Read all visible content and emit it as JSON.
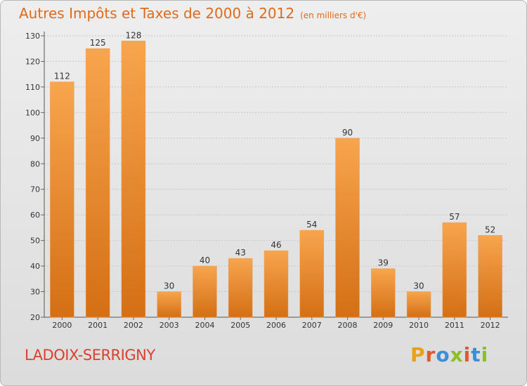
{
  "header": {
    "title": "Autres Impôts et Taxes de 2000 à 2012",
    "subtitle": "(en milliers d'€)"
  },
  "footer": {
    "city": "LADOIX-SERRIGNY",
    "logo_letters": [
      "P",
      "r",
      "o",
      "x",
      "i",
      "t",
      "i"
    ],
    "logo_colors": [
      "#e8a21a",
      "#e05a2a",
      "#3a8fd8",
      "#8cbf26",
      "#e05a2a",
      "#3a8fd8",
      "#8cbf26"
    ]
  },
  "colors": {
    "bar_top": "#f7a54e",
    "bar_bottom": "#d46f14",
    "title": "#e06a1b",
    "city": "#d9412e"
  },
  "chart_data": {
    "type": "bar",
    "title": "Autres Impôts et Taxes de 2000 à 2012",
    "subtitle": "(en milliers d'€)",
    "categories": [
      "2000",
      "2001",
      "2002",
      "2003",
      "2004",
      "2005",
      "2006",
      "2007",
      "2008",
      "2009",
      "2010",
      "2011",
      "2012"
    ],
    "values": [
      112,
      125,
      128,
      30,
      40,
      43,
      46,
      54,
      90,
      39,
      30,
      57,
      52
    ],
    "ylim": [
      20,
      130
    ],
    "yticks": [
      20,
      30,
      40,
      50,
      60,
      70,
      80,
      90,
      100,
      110,
      120,
      130
    ],
    "grid": true,
    "legend": "none"
  }
}
